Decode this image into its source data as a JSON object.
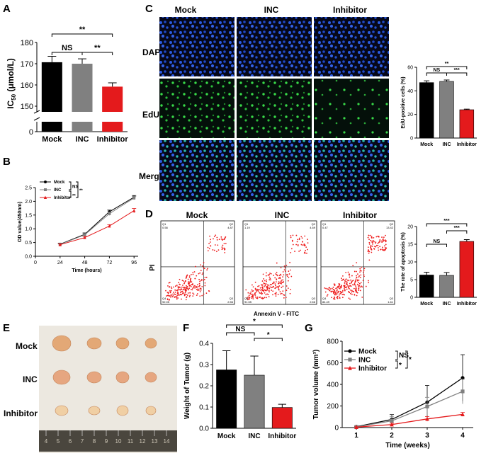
{
  "panel_labels": [
    "A",
    "B",
    "C",
    "D",
    "E",
    "F",
    "G"
  ],
  "colors": {
    "mock": "#000000",
    "inc": "#808080",
    "inhibitor": "#e41a1c",
    "dapi": "#1e50d2",
    "edu": "#32d23c",
    "micro_bg": "#06081a",
    "flow": "#ee1c1c"
  },
  "chart_data": [
    {
      "id": "A",
      "type": "bar",
      "categories": [
        "Mock",
        "INC",
        "Inhibitor"
      ],
      "values": [
        170.7,
        170.0,
        159.2
      ],
      "errors": [
        2.8,
        2.3,
        1.8
      ],
      "ylabel_main": "IC",
      "ylabel_sub": "50",
      "ylabel_unit": " (μmol/L)",
      "yticks": [
        "150",
        "160",
        "170",
        "180"
      ],
      "axis_break_label": "0",
      "ylim": [
        150,
        180
      ],
      "significance": [
        {
          "from": "Mock",
          "to": "INC",
          "label": "NS"
        },
        {
          "from": "INC",
          "to": "Inhibitor",
          "label": "**"
        },
        {
          "from": "Mock",
          "to": "Inhibitor",
          "label": "**"
        }
      ]
    },
    {
      "id": "B",
      "type": "line",
      "x": [
        24,
        48,
        72,
        96
      ],
      "xlabel": "Time (hours)",
      "ylabel": "OD value(450nm)",
      "xlim": [
        0,
        100
      ],
      "ylim": [
        0,
        2.5
      ],
      "yticks": [
        "0.0",
        "0.5",
        "1.0",
        "1.5",
        "2.0",
        "2.5"
      ],
      "xticks": [
        "0",
        "24",
        "48",
        "72",
        "96"
      ],
      "series": [
        {
          "name": "Mock",
          "values": [
            0.44,
            0.8,
            1.62,
            2.15
          ],
          "errors": [
            0.04,
            0.05,
            0.06,
            0.06
          ]
        },
        {
          "name": "INC",
          "values": [
            0.43,
            0.78,
            1.55,
            2.12
          ],
          "errors": [
            0.04,
            0.05,
            0.06,
            0.06
          ]
        },
        {
          "name": "Inhibitor",
          "values": [
            0.42,
            0.68,
            1.1,
            1.66
          ],
          "errors": [
            0.03,
            0.04,
            0.05,
            0.08
          ]
        }
      ],
      "legend_marks": [
        "NS",
        "**",
        "**"
      ]
    },
    {
      "id": "C_bar",
      "type": "bar",
      "categories": [
        "Mock",
        "INC",
        "Inhibitor"
      ],
      "values": [
        47,
        48,
        24
      ],
      "errors": [
        1.5,
        1.2,
        0.5
      ],
      "ylabel": "EdU-positive cells (%)",
      "ylim": [
        0,
        60
      ],
      "yticks": [
        "0",
        "20",
        "40",
        "60"
      ],
      "significance": [
        {
          "from": "Mock",
          "to": "INC",
          "label": "NS"
        },
        {
          "from": "INC",
          "to": "Inhibitor",
          "label": "***"
        },
        {
          "from": "Mock",
          "to": "Inhibitor",
          "label": "**"
        }
      ]
    },
    {
      "id": "D_bar",
      "type": "bar",
      "categories": [
        "Mock",
        "INC",
        "Inhibitor"
      ],
      "values": [
        6.3,
        6.2,
        15.8
      ],
      "errors": [
        0.8,
        0.8,
        0.5
      ],
      "ylabel": "The rate of apoptosis (%)",
      "ylim": [
        0,
        20
      ],
      "yticks": [
        "0",
        "5",
        "10",
        "15",
        "20"
      ],
      "significance": [
        {
          "from": "Mock",
          "to": "INC",
          "label": "NS"
        },
        {
          "from": "INC",
          "to": "Inhibitor",
          "label": "***"
        },
        {
          "from": "Mock",
          "to": "Inhibitor",
          "label": "***"
        }
      ]
    },
    {
      "id": "F",
      "type": "bar",
      "categories": [
        "Mock",
        "INC",
        "Inhibitor"
      ],
      "values": [
        0.275,
        0.25,
        0.098
      ],
      "errors": [
        0.09,
        0.09,
        0.015
      ],
      "ylabel": "Weight of Tumor (g)",
      "ylim": [
        0,
        0.4
      ],
      "yticks": [
        "0.0",
        "0.1",
        "0.2",
        "0.3",
        "0.4"
      ],
      "significance": [
        {
          "from": "Mock",
          "to": "INC",
          "label": "NS"
        },
        {
          "from": "INC",
          "to": "Inhibitor",
          "label": "*"
        },
        {
          "from": "Mock",
          "to": "Inhibitor",
          "label": "*"
        }
      ]
    },
    {
      "id": "G",
      "type": "line",
      "x": [
        1,
        2,
        3,
        4
      ],
      "xlabel": "Time (weeks)",
      "ylabel": "Tumor volume (mm³)",
      "xlim": [
        0.6,
        4.3
      ],
      "ylim": [
        0,
        800
      ],
      "yticks": [
        "0",
        "200",
        "400",
        "600",
        "800"
      ],
      "xticks": [
        "1",
        "2",
        "3",
        "4"
      ],
      "series": [
        {
          "name": "Mock",
          "values": [
            8,
            75,
            235,
            460
          ],
          "errors": [
            5,
            45,
            155,
            215
          ]
        },
        {
          "name": "INC",
          "values": [
            6,
            62,
            195,
            335
          ],
          "errors": [
            4,
            38,
            85,
            115
          ]
        },
        {
          "name": "Inhibitor",
          "values": [
            4,
            28,
            80,
            122
          ],
          "errors": [
            3,
            12,
            22,
            18
          ]
        }
      ],
      "legend_marks": [
        "NS",
        "*",
        "*"
      ]
    }
  ],
  "panel_c": {
    "columns": [
      "Mock",
      "INC",
      "Inhibitor"
    ],
    "rows": [
      "DAPI",
      "EdU",
      "Merge"
    ]
  },
  "panel_d": {
    "columns": [
      "Mock",
      "INC",
      "Inhibitor"
    ],
    "ylabel": "PI",
    "xlabel": "Annexin V - FITC",
    "quadrants": [
      {
        "q1": "Q1",
        "q1v": "0.58",
        "q2": "Q2",
        "q2v": "4.87",
        "q3": "Q3",
        "q3v": "2.56",
        "q4": "Q4",
        "q4v": "92.05"
      },
      {
        "q1": "Q1",
        "q1v": "1.19",
        "q2": "Q2",
        "q2v": "4.69",
        "q3": "Q3",
        "q3v": "2.66",
        "q4": "Q4",
        "q4v": "91.55"
      },
      {
        "q1": "Q1",
        "q1v": "0.47",
        "q2": "Q2",
        "q2v": "13.42",
        "q3": "Q3",
        "q3v": "1.61",
        "q4": "Q4",
        "q4v": "84.49"
      }
    ]
  },
  "panel_e": {
    "rows": [
      "Mock",
      "INC",
      "Inhibitor"
    ],
    "ruler_numbers": [
      "4",
      "5",
      "6",
      "7",
      "8",
      "9",
      "10",
      "11",
      "12",
      "13",
      "14"
    ]
  }
}
